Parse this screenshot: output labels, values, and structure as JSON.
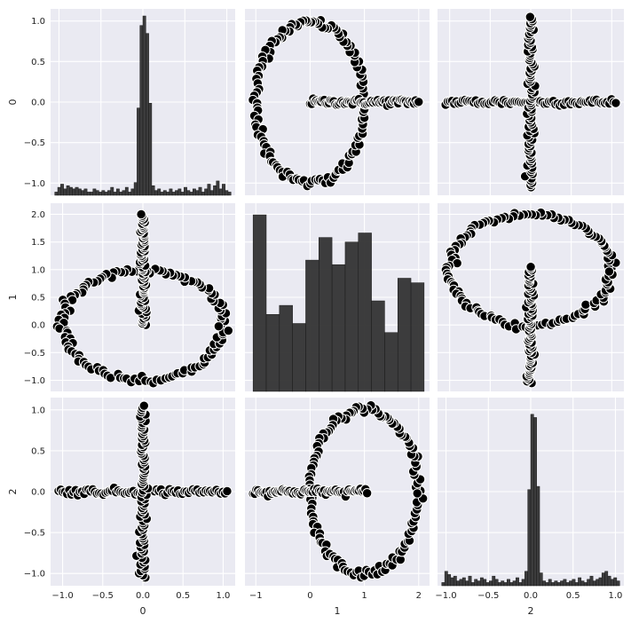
{
  "figure": {
    "type": "pairplot",
    "variables": [
      "0",
      "1",
      "2"
    ],
    "colors": {
      "panel_background": "#eaeaf2",
      "grid": "#ffffff",
      "marker_fill": "#000000",
      "marker_edge": "#ffffff",
      "hist_fill": "#333333",
      "text": "#222222"
    }
  },
  "chart_data": [
    {
      "id": "r0c0",
      "row": 0,
      "col": 0,
      "type": "histogram",
      "xlim": [
        -1.1,
        1.1
      ],
      "ylim": [
        -1.15,
        1.15
      ],
      "xticks": [
        -1.0,
        -0.5,
        0.0,
        0.5,
        1.0
      ],
      "yticks": [
        -1.0,
        -0.5,
        0.0,
        0.5,
        1.0
      ],
      "yticklabels": [
        "−1.0",
        "−0.5",
        "0.0",
        "0.5",
        "1.0"
      ],
      "ylabel": "0",
      "bins": [
        -1.05,
        1.05
      ],
      "nbins": 60,
      "counts": [
        2,
        5,
        7,
        4,
        6,
        5,
        4,
        5,
        4,
        3,
        4,
        2,
        2,
        4,
        3,
        2,
        3,
        2,
        3,
        5,
        2,
        4,
        2,
        3,
        5,
        2,
        4,
        8,
        55,
        107,
        113,
        102,
        58,
        6,
        3,
        4,
        2,
        3,
        2,
        4,
        2,
        3,
        4,
        2,
        5,
        3,
        2,
        4,
        3,
        5,
        2,
        4,
        7,
        3,
        6,
        9,
        4,
        7,
        3,
        2
      ],
      "count_max": 113,
      "grid": true
    },
    {
      "id": "r0c1",
      "row": 0,
      "col": 1,
      "type": "scatter",
      "xlim": [
        -1.2,
        2.2
      ],
      "ylim": [
        -1.15,
        1.15
      ],
      "xticks": [
        -1,
        0,
        1,
        2
      ],
      "yticks": [
        -1.0,
        -0.5,
        0.0,
        0.5,
        1.0
      ],
      "series": [
        {
          "shape": "ellipse",
          "center": [
            0,
            0
          ],
          "radius": [
            1,
            1
          ],
          "n": 130
        },
        {
          "shape": "hline",
          "y": 0,
          "range": [
            0,
            2.0
          ],
          "n": 70
        }
      ],
      "grid": true
    },
    {
      "id": "r0c2",
      "row": 0,
      "col": 2,
      "type": "scatter",
      "xlim": [
        -1.15,
        1.15
      ],
      "ylim": [
        -1.15,
        1.15
      ],
      "xticks": [
        -1.0,
        -0.5,
        0.0,
        0.5,
        1.0
      ],
      "yticks": [
        -1.0,
        -0.5,
        0.0,
        0.5,
        1.0
      ],
      "series": [
        {
          "shape": "hline",
          "y": 0,
          "range": [
            -1.05,
            1.05
          ],
          "n": 80
        },
        {
          "shape": "vline",
          "x": 0,
          "range": [
            -1.05,
            1.05
          ],
          "n": 80
        }
      ],
      "grid": true
    },
    {
      "id": "r1c0",
      "row": 1,
      "col": 0,
      "type": "scatter",
      "xlim": [
        -1.15,
        1.15
      ],
      "ylim": [
        -1.2,
        2.2
      ],
      "xticks": [
        -1.0,
        -0.5,
        0.0,
        0.5,
        1.0
      ],
      "yticks": [
        -1.0,
        -0.5,
        0.0,
        0.5,
        1.0,
        1.5,
        2.0
      ],
      "yticklabels": [
        "−1.0",
        "−0.5",
        "0.0",
        "0.5",
        "1.0",
        "1.5",
        "2.0"
      ],
      "ylabel": "1",
      "series": [
        {
          "shape": "ellipse",
          "center": [
            0,
            0
          ],
          "radius": [
            1,
            1
          ],
          "n": 130
        },
        {
          "shape": "vline",
          "x": 0,
          "range": [
            0,
            2.0
          ],
          "n": 70
        }
      ],
      "grid": true
    },
    {
      "id": "r1c1",
      "row": 1,
      "col": 1,
      "type": "histogram",
      "xlim": [
        -1.2,
        2.2
      ],
      "ylim": [
        0,
        1
      ],
      "xticks": [
        -1,
        0,
        1,
        2
      ],
      "yticks": [
        -1.0,
        -0.5,
        0.0,
        0.5,
        1.0,
        1.5,
        2.0
      ],
      "bins": [
        -1.05,
        2.1
      ],
      "nbins": 13,
      "counts": [
        39,
        17,
        19,
        15,
        29,
        34,
        28,
        33,
        35,
        20,
        13,
        25,
        24
      ],
      "count_max": 40,
      "grid": true
    },
    {
      "id": "r1c2",
      "row": 1,
      "col": 2,
      "type": "scatter",
      "xlim": [
        -1.15,
        1.15
      ],
      "ylim": [
        -1.2,
        2.2
      ],
      "xticks": [
        -1.0,
        -0.5,
        0.0,
        0.5,
        1.0
      ],
      "yticks": [
        -1.0,
        -0.5,
        0.0,
        0.5,
        1.0,
        1.5,
        2.0
      ],
      "series": [
        {
          "shape": "ellipse",
          "center": [
            0,
            1
          ],
          "radius": [
            1,
            1
          ],
          "n": 130
        },
        {
          "shape": "vline",
          "x": 0,
          "range": [
            -1.05,
            1.05
          ],
          "n": 70
        }
      ],
      "grid": true
    },
    {
      "id": "r2c0",
      "row": 2,
      "col": 0,
      "type": "scatter",
      "xlim": [
        -1.15,
        1.15
      ],
      "ylim": [
        -1.15,
        1.15
      ],
      "xticks": [
        -1.0,
        -0.5,
        0.0,
        0.5,
        1.0
      ],
      "xticklabels": [
        "−1.0",
        "−0.5",
        "0.0",
        "0.5",
        "1.0"
      ],
      "yticks": [
        -1.0,
        -0.5,
        0.0,
        0.5,
        1.0
      ],
      "yticklabels": [
        "−1.0",
        "−0.5",
        "0.0",
        "0.5",
        "1.0"
      ],
      "xlabel": "0",
      "ylabel": "2",
      "series": [
        {
          "shape": "hline",
          "y": 0,
          "range": [
            -1.05,
            1.05
          ],
          "n": 80
        },
        {
          "shape": "vline",
          "x": 0,
          "range": [
            -1.05,
            1.05
          ],
          "n": 80
        }
      ],
      "grid": true
    },
    {
      "id": "r2c1",
      "row": 2,
      "col": 1,
      "type": "scatter",
      "xlim": [
        -1.2,
        2.2
      ],
      "ylim": [
        -1.15,
        1.15
      ],
      "xticks": [
        -1,
        0,
        1,
        2
      ],
      "xticklabels": [
        "−1",
        "0",
        "1",
        "2"
      ],
      "yticks": [
        -1.0,
        -0.5,
        0.0,
        0.5,
        1.0
      ],
      "xlabel": "1",
      "series": [
        {
          "shape": "ellipse",
          "center": [
            1,
            0
          ],
          "radius": [
            1,
            1
          ],
          "n": 130
        },
        {
          "shape": "hline",
          "y": 0,
          "range": [
            -1.05,
            1.05
          ],
          "n": 70
        }
      ],
      "grid": true
    },
    {
      "id": "r2c2",
      "row": 2,
      "col": 2,
      "type": "histogram",
      "xlim": [
        -1.1,
        1.1
      ],
      "ylim": [
        -1.15,
        1.15
      ],
      "xticks": [
        -1.0,
        -0.5,
        0.0,
        0.5,
        1.0
      ],
      "xticklabels": [
        "−1.0",
        "−0.5",
        "0.0",
        "0.5",
        "1.0"
      ],
      "yticks": [
        -1.0,
        -0.5,
        0.0,
        0.5,
        1.0
      ],
      "xlabel": "2",
      "bins": [
        -1.05,
        1.05
      ],
      "nbins": 60,
      "counts": [
        2,
        9,
        7,
        5,
        6,
        3,
        4,
        5,
        3,
        6,
        2,
        4,
        3,
        5,
        4,
        2,
        3,
        6,
        4,
        2,
        3,
        2,
        4,
        2,
        3,
        5,
        2,
        4,
        9,
        60,
        107,
        105,
        62,
        8,
        3,
        2,
        4,
        2,
        3,
        2,
        3,
        4,
        2,
        3,
        4,
        2,
        5,
        3,
        2,
        4,
        6,
        3,
        4,
        5,
        8,
        9,
        6,
        4,
        5,
        3
      ],
      "count_max": 113,
      "grid": true
    }
  ]
}
